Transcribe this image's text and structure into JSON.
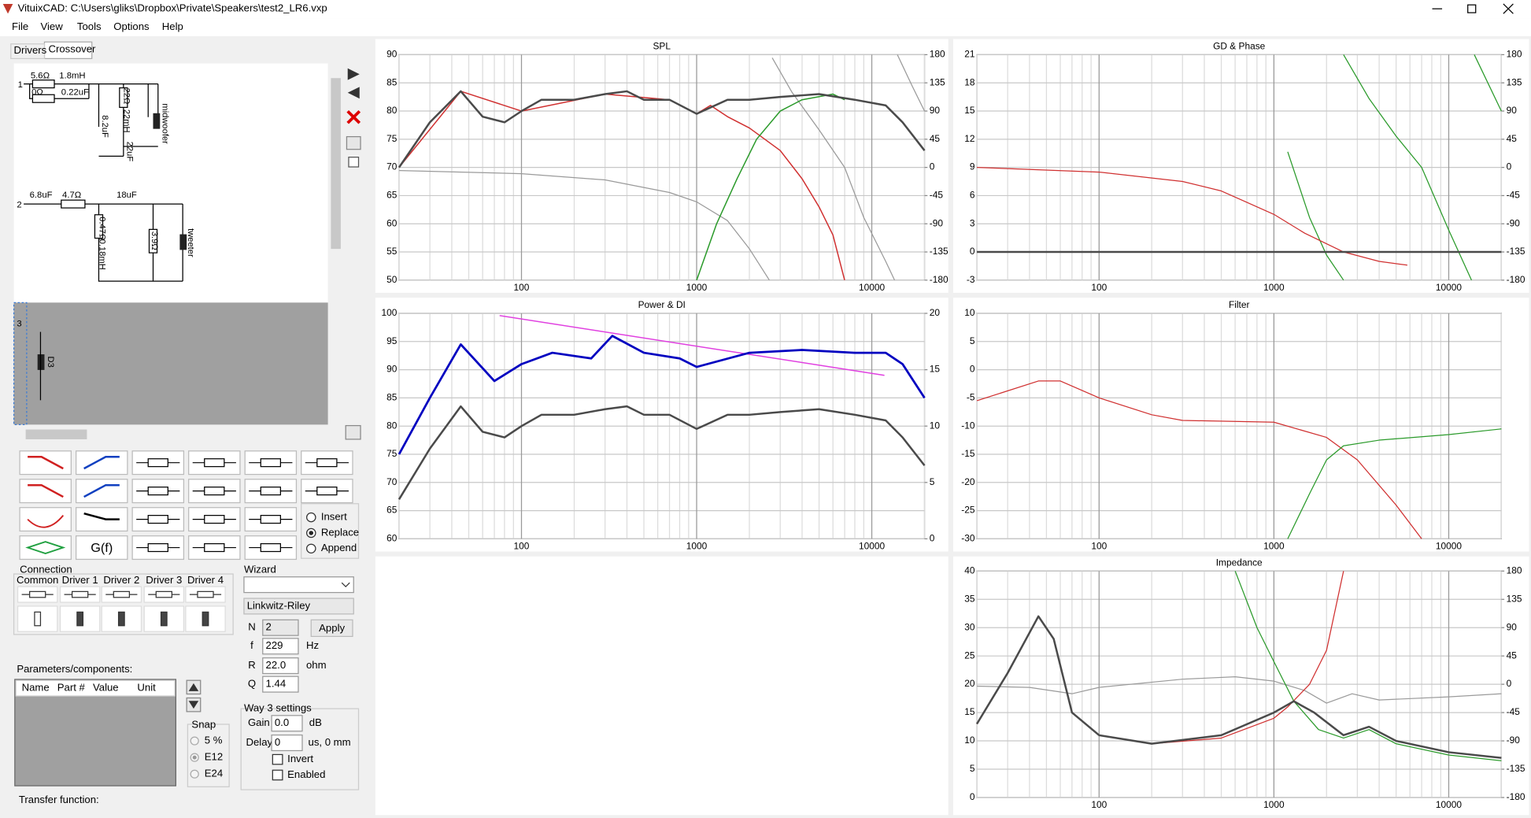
{
  "window": {
    "title": "VituixCAD: C:\\Users\\gliks\\Dropbox\\Private\\Speakers\\test2_LR6.vxp",
    "menu": [
      "File",
      "View",
      "Tools",
      "Options",
      "Help"
    ]
  },
  "tabs": [
    "Drivers",
    "Crossover"
  ],
  "schematic": {
    "rows": [
      "1",
      "2",
      "3"
    ],
    "labels": [
      "5.6Ω",
      "1.8mH",
      "0Ω",
      "0.22uF",
      "22Ω",
      "22mH",
      "22uF",
      "8.2uF",
      "midwoofer",
      "6.8uF",
      "4.7Ω",
      "18uF",
      "0.47Ω",
      "0.18mH",
      "3.9Ω",
      "tweeter",
      "D3"
    ]
  },
  "palette": {
    "function_button": "G(f)",
    "modes": [
      "Insert",
      "Replace",
      "Append"
    ],
    "selected": 1
  },
  "connection": {
    "title": "Connection",
    "columns": [
      "Common",
      "Driver 1",
      "Driver 2",
      "Driver 3",
      "Driver 4"
    ]
  },
  "wizard": {
    "title": "Wizard",
    "filter_type": "Linkwitz-Riley",
    "apply": "Apply",
    "fields": [
      {
        "label": "N",
        "value": "2"
      },
      {
        "label": "f",
        "value": "229",
        "unit": "Hz"
      },
      {
        "label": "R",
        "value": "22.0",
        "unit": "ohm"
      },
      {
        "label": "Q",
        "value": "1.44"
      }
    ]
  },
  "parameters": {
    "title": "Parameters/components:",
    "columns": [
      "Name",
      "Part #",
      "Value",
      "Unit"
    ]
  },
  "snap": {
    "title": "Snap",
    "options": [
      "5 %",
      "E12",
      "E24"
    ],
    "selected": 1
  },
  "way_settings": {
    "title": "Way 3 settings",
    "gain_label": "Gain",
    "gain": "0.0",
    "gain_unit": "dB",
    "delay_label": "Delay",
    "delay": "0",
    "delay_unit": "us, 0 mm",
    "checkboxes": [
      "Invert",
      "Enabled"
    ]
  },
  "transfer_function": "Transfer function:",
  "chart_data": [
    {
      "type": "line",
      "title": "SPL",
      "xlog": true,
      "xlim": [
        20,
        20000
      ],
      "xticks": [
        100,
        1000,
        10000
      ],
      "xgrid": [
        20,
        30,
        40,
        50,
        60,
        70,
        80,
        90,
        200,
        300,
        400,
        500,
        600,
        700,
        800,
        900,
        2000,
        3000,
        4000,
        5000,
        6000,
        7000,
        8000,
        9000,
        20000
      ],
      "ylim": [
        50,
        90
      ],
      "yticks": [
        50,
        55,
        60,
        65,
        70,
        75,
        80,
        85,
        90
      ],
      "y2lim": [
        -180,
        180
      ],
      "y2ticks": [
        -180,
        -135,
        -90,
        -45,
        0,
        45,
        90,
        135,
        180
      ],
      "grid": true,
      "series": [
        {
          "color": "#9a9a9a",
          "width": 1,
          "axis": "y2",
          "x": [
            20,
            100,
            300,
            700,
            1000,
            1500,
            2000,
            2600,
            null,
            2700,
            3500,
            5000,
            7000,
            9000,
            12000,
            13500,
            null,
            14000,
            17000,
            20000
          ],
          "values": [
            -5,
            -10,
            -20,
            -40,
            -55,
            -85,
            -130,
            -180,
            null,
            175,
            120,
            60,
            0,
            -80,
            -150,
            -180,
            null,
            180,
            130,
            90
          ]
        },
        {
          "color": "#d03030",
          "width": 1.2,
          "x": [
            20,
            45,
            100,
            300,
            700,
            1000,
            1200,
            1500,
            2000,
            3000,
            4000,
            5000,
            6000,
            7000
          ],
          "values": [
            70,
            83.5,
            80,
            83,
            82,
            79.5,
            81,
            79,
            77,
            73,
            68,
            63,
            58,
            50
          ]
        },
        {
          "color": "#2a9a2a",
          "width": 1.2,
          "x": [
            1000,
            1300,
            1700,
            2200,
            3000,
            4000,
            6000,
            7000
          ],
          "values": [
            50,
            60,
            68,
            75,
            80,
            82,
            83,
            82
          ]
        },
        {
          "color": "#4a4a4a",
          "width": 2,
          "x": [
            20,
            30,
            45,
            60,
            80,
            100,
            130,
            200,
            300,
            400,
            500,
            700,
            1000,
            1500,
            2000,
            3000,
            5000,
            8000,
            12000,
            15000,
            20000
          ],
          "values": [
            70,
            78,
            83.5,
            79,
            78,
            80,
            82,
            82,
            83,
            83.5,
            82,
            82,
            79.5,
            82,
            82,
            82.5,
            83,
            82,
            81,
            78,
            73
          ]
        }
      ]
    },
    {
      "type": "line",
      "title": "GD & Phase",
      "xlog": true,
      "xlim": [
        20,
        20000
      ],
      "xticks": [
        100,
        1000,
        10000
      ],
      "xgrid": [
        20,
        30,
        40,
        50,
        60,
        70,
        80,
        90,
        200,
        300,
        400,
        500,
        600,
        700,
        800,
        900,
        2000,
        3000,
        4000,
        5000,
        6000,
        7000,
        8000,
        9000,
        20000
      ],
      "ylim": [
        -3,
        21
      ],
      "yticks": [
        -3,
        0,
        3,
        6,
        9,
        12,
        15,
        18,
        21
      ],
      "y2lim": [
        -180,
        180
      ],
      "y2ticks": [
        -180,
        -135,
        -90,
        -45,
        0,
        45,
        90,
        135,
        180
      ],
      "grid": true,
      "series": [
        {
          "color": "#2a9a2a",
          "width": 1,
          "axis": "y2",
          "x": [
            1200,
            1600,
            2000,
            2500,
            null,
            2500,
            3500,
            5000,
            7000,
            10000,
            13500,
            null,
            14000,
            20000
          ],
          "values": [
            25,
            -80,
            -140,
            -180,
            null,
            180,
            110,
            50,
            0,
            -100,
            -180,
            null,
            180,
            90
          ]
        },
        {
          "color": "#d03030",
          "width": 1,
          "x": [
            20,
            100,
            300,
            500,
            1000,
            1500,
            2500,
            4000,
            5800
          ],
          "values": [
            9,
            8.5,
            7.5,
            6.5,
            4,
            2,
            0,
            -1,
            -1.4
          ]
        },
        {
          "color": "#4a4a4a",
          "width": 2,
          "x": [
            20,
            200,
            2000,
            20000
          ],
          "values": [
            0,
            0,
            0,
            0
          ]
        }
      ]
    },
    {
      "type": "line",
      "title": "Power & DI",
      "xlog": true,
      "xlim": [
        20,
        20000
      ],
      "xticks": [
        100,
        1000,
        10000
      ],
      "xgrid": [
        20,
        30,
        40,
        50,
        60,
        70,
        80,
        90,
        200,
        300,
        400,
        500,
        600,
        700,
        800,
        900,
        2000,
        3000,
        4000,
        5000,
        6000,
        7000,
        8000,
        9000,
        20000
      ],
      "ylim": [
        60,
        100
      ],
      "yticks": [
        60,
        65,
        70,
        75,
        80,
        85,
        90,
        95,
        100
      ],
      "y2lim": [
        0,
        20
      ],
      "y2ticks": [
        0,
        5,
        10,
        15,
        20
      ],
      "grid": true,
      "series": [
        {
          "color": "#e040e0",
          "width": 1.2,
          "axis": "y2",
          "x": [
            75,
            11800
          ],
          "values": [
            19.8,
            14.5
          ]
        },
        {
          "color": "#4a4a4a",
          "width": 2,
          "x": [
            20,
            30,
            45,
            60,
            80,
            100,
            130,
            200,
            300,
            400,
            500,
            700,
            1000,
            1500,
            2000,
            3000,
            5000,
            8000,
            12000,
            15000,
            20000
          ],
          "values": [
            67,
            76,
            83.5,
            79,
            78,
            80,
            82,
            82,
            83,
            83.5,
            82,
            82,
            79.5,
            82,
            82,
            82.5,
            83,
            82,
            81,
            78,
            73
          ]
        },
        {
          "color": "#0000c0",
          "width": 2.2,
          "x": [
            20,
            30,
            45,
            70,
            100,
            150,
            250,
            330,
            500,
            800,
            1000,
            2000,
            4000,
            8000,
            12000,
            15000,
            20000
          ],
          "values": [
            75,
            85,
            94.5,
            88,
            91,
            93,
            92,
            96,
            93,
            92,
            90.5,
            93,
            93.5,
            93,
            93,
            91,
            85
          ]
        }
      ]
    },
    {
      "type": "line",
      "title": "Filter",
      "xlog": true,
      "xlim": [
        20,
        20000
      ],
      "xticks": [
        100,
        1000,
        10000
      ],
      "xgrid": [
        20,
        30,
        40,
        50,
        60,
        70,
        80,
        90,
        200,
        300,
        400,
        500,
        600,
        700,
        800,
        900,
        2000,
        3000,
        4000,
        5000,
        6000,
        7000,
        8000,
        9000,
        20000
      ],
      "ylim": [
        -30,
        10
      ],
      "yticks": [
        -30,
        -25,
        -20,
        -15,
        -10,
        -5,
        0,
        5,
        10
      ],
      "grid": true,
      "series": [
        {
          "color": "#d03030",
          "width": 1,
          "x": [
            20,
            45,
            60,
            100,
            200,
            300,
            1000,
            2000,
            3000,
            5000,
            7000
          ],
          "values": [
            -5.5,
            -2,
            -2,
            -5,
            -8,
            -9,
            -9.3,
            -12,
            -16,
            -24,
            -30
          ]
        },
        {
          "color": "#2a9a2a",
          "width": 1,
          "x": [
            1200,
            1600,
            2000,
            2500,
            4000,
            10000,
            20000
          ],
          "values": [
            -30,
            -22,
            -16,
            -13.5,
            -12.5,
            -11.5,
            -10.5
          ]
        }
      ]
    },
    {
      "type": "line",
      "title": "Impedance",
      "xlog": true,
      "xlim": [
        20,
        20000
      ],
      "xticks": [
        100,
        1000,
        10000
      ],
      "xgrid": [
        20,
        30,
        40,
        50,
        60,
        70,
        80,
        90,
        200,
        300,
        400,
        500,
        600,
        700,
        800,
        900,
        2000,
        3000,
        4000,
        5000,
        6000,
        7000,
        8000,
        9000,
        20000
      ],
      "ylim": [
        0,
        40
      ],
      "yticks": [
        0,
        5,
        10,
        15,
        20,
        25,
        30,
        35,
        40
      ],
      "y2lim": [
        -180,
        180
      ],
      "y2ticks": [
        -180,
        -135,
        -90,
        -45,
        0,
        45,
        90,
        135,
        180
      ],
      "grid": true,
      "series": [
        {
          "color": "#9a9a9a",
          "width": 1,
          "axis": "y2",
          "x": [
            20,
            40,
            70,
            100,
            300,
            600,
            1000,
            1500,
            2000,
            2800,
            4000,
            10000,
            20000
          ],
          "values": [
            -3,
            -5,
            -15,
            -5,
            8,
            12,
            5,
            -10,
            -30,
            -15,
            -25,
            -20,
            -15
          ]
        },
        {
          "color": "#d03030",
          "width": 1,
          "x": [
            20,
            30,
            45,
            55,
            70,
            100,
            200,
            500,
            1000,
            1200,
            1600,
            2000,
            2500
          ],
          "values": [
            13,
            22,
            32,
            28,
            15,
            11,
            9.5,
            10.5,
            14,
            16,
            20,
            26,
            40
          ]
        },
        {
          "color": "#2a9a2a",
          "width": 1,
          "x": [
            600,
            800,
            1000,
            1300,
            1800,
            2500,
            3500,
            5000,
            10000,
            20000
          ],
          "values": [
            40,
            30,
            24,
            17,
            12,
            10.5,
            12,
            9.5,
            7.5,
            6.5
          ]
        },
        {
          "color": "#4a4a4a",
          "width": 2,
          "x": [
            20,
            30,
            45,
            55,
            70,
            100,
            200,
            500,
            1000,
            1300,
            1700,
            2500,
            3500,
            5000,
            10000,
            20000
          ],
          "values": [
            13,
            22,
            32,
            28,
            15,
            11,
            9.5,
            11,
            15,
            17,
            15,
            11,
            12.5,
            10,
            8,
            7
          ]
        }
      ]
    }
  ]
}
